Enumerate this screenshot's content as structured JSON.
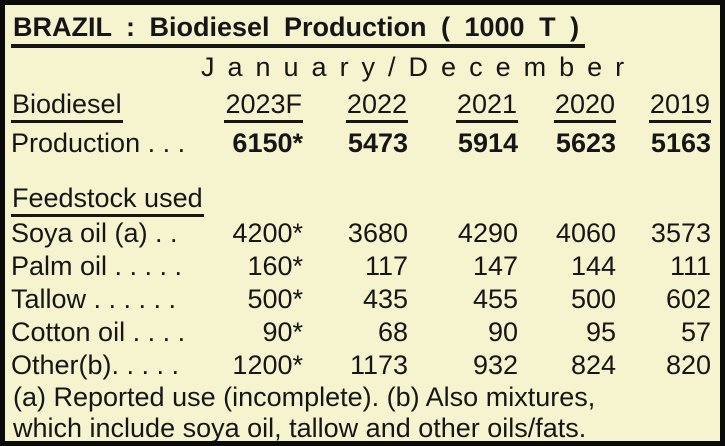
{
  "title": "BRAZIL : Biodiesel Production ( 1000 T )",
  "subtitle": "January/December",
  "table": {
    "label_header": "Biodiesel",
    "years": [
      "2023F",
      "2022",
      "2021",
      "2020",
      "2019"
    ],
    "production": {
      "label": "Production . . .",
      "values": [
        "6150*",
        "5473",
        "5914",
        "5623",
        "5163"
      ]
    },
    "feedstock": {
      "header": "Feedstock used",
      "rows": [
        {
          "label": "Soya oil (a) . .",
          "values": [
            "4200*",
            "3680",
            "4290",
            "4060",
            "3573"
          ]
        },
        {
          "label": "Palm oil . . . . .",
          "values": [
            "160*",
            "117",
            "147",
            "144",
            "111"
          ]
        },
        {
          "label": "Tallow . . . . . .",
          "values": [
            "500*",
            "435",
            "455",
            "500",
            "602"
          ]
        },
        {
          "label": "Cotton oil . . . .",
          "values": [
            "90*",
            "68",
            "90",
            "95",
            "57"
          ]
        },
        {
          "label": "Other(b). . . . .",
          "values": [
            "1200*",
            "1173",
            "932",
            "824",
            "820"
          ]
        }
      ]
    },
    "footnotes": [
      "(a) Reported use (incomplete). (b) Also mixtures,",
      "which include soya oil, tallow and other oils/fats."
    ]
  },
  "colors": {
    "background": "#F6F3CF",
    "border": "#0B0B0B",
    "text": "#161616"
  }
}
